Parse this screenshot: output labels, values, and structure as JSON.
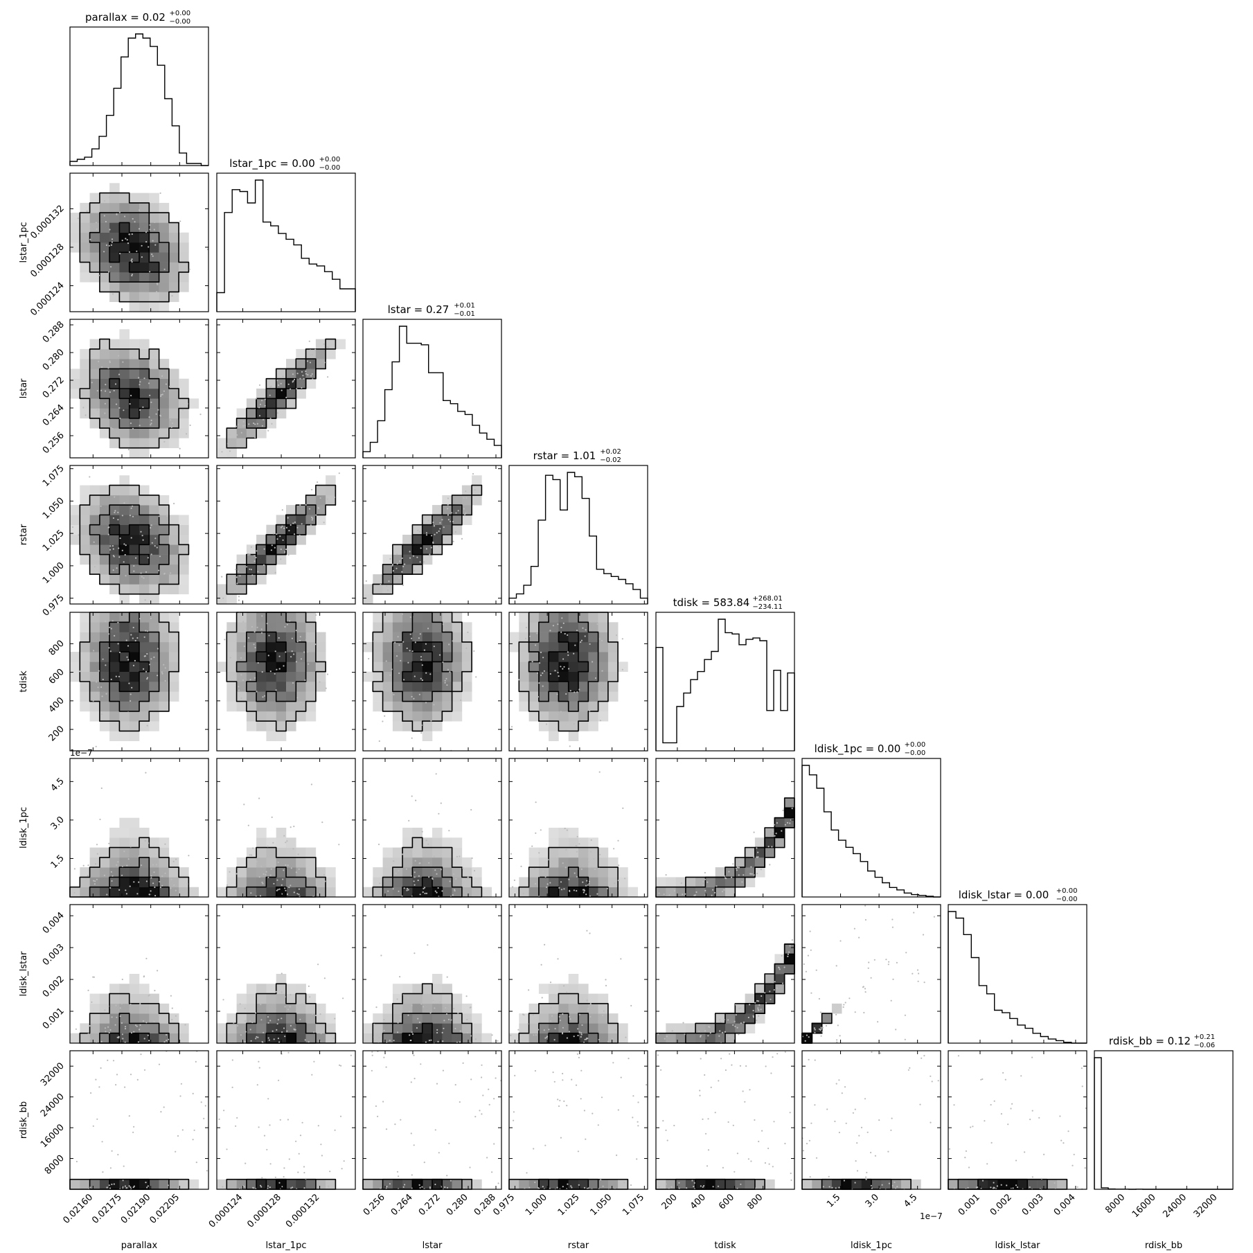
{
  "chart_data": {
    "type": "corner",
    "parameters": [
      "parallax",
      "lstar_1pc",
      "lstar",
      "rstar",
      "tdisk",
      "ldisk_1pc",
      "ldisk_lstar",
      "rdisk_bb"
    ],
    "titles": [
      {
        "name": "parallax",
        "median": "0.02",
        "plus": "+0.00",
        "minus": "−0.00"
      },
      {
        "name": "lstar_1pc",
        "median": "0.00",
        "plus": "+0.00",
        "minus": "−0.00"
      },
      {
        "name": "lstar",
        "median": "0.27",
        "plus": "+0.01",
        "minus": "−0.01"
      },
      {
        "name": "rstar",
        "median": "1.01",
        "plus": "+0.02",
        "minus": "−0.02"
      },
      {
        "name": "tdisk",
        "median": "583.84",
        "plus": "+268.01",
        "minus": "−234.11"
      },
      {
        "name": "ldisk_1pc",
        "median": "0.00",
        "plus": "+0.00",
        "minus": "−0.00"
      },
      {
        "name": "ldisk_lstar",
        "median": "0.00",
        "plus": "+0.00",
        "minus": "−0.00"
      },
      {
        "name": "rdisk_bb",
        "median": "0.12",
        "plus": "+0.21",
        "minus": "−0.06"
      }
    ],
    "axes": [
      {
        "name": "parallax",
        "range": [
          0.02148,
          0.0222
        ],
        "ticks": [
          0.0216,
          0.02175,
          0.0219,
          0.02205
        ],
        "tick_labels": [
          "0.02160",
          "0.02175",
          "0.02190",
          "0.02205"
        ],
        "offset": ""
      },
      {
        "name": "lstar_1pc",
        "range": [
          0.0001213,
          0.0001357
        ],
        "ticks": [
          0.000124,
          0.000128,
          0.000132
        ],
        "tick_labels": [
          "0.000124",
          "0.000128",
          "0.000132"
        ],
        "offset": ""
      },
      {
        "name": "lstar",
        "range": [
          0.2496,
          0.2896
        ],
        "ticks": [
          0.256,
          0.264,
          0.272,
          0.28,
          0.288
        ],
        "tick_labels": [
          "0.256",
          "0.264",
          "0.272",
          "0.280",
          "0.288"
        ],
        "offset": ""
      },
      {
        "name": "rstar",
        "range": [
          0.9705,
          1.0775
        ],
        "ticks": [
          0.975,
          1.0,
          1.025,
          1.05,
          1.075
        ],
        "tick_labels": [
          "0.975",
          "1.000",
          "1.025",
          "1.050",
          "1.075"
        ],
        "offset": ""
      },
      {
        "name": "tdisk",
        "range": [
          50,
          1020
        ],
        "ticks": [
          200,
          400,
          600,
          800
        ],
        "tick_labels": [
          "200",
          "400",
          "600",
          "800"
        ],
        "offset": ""
      },
      {
        "name": "ldisk_1pc",
        "range": [
          0.0,
          5.4
        ],
        "ticks": [
          1.5,
          3.0,
          4.5
        ],
        "tick_labels": [
          "1.5",
          "3.0",
          "4.5"
        ],
        "offset": "1e−7"
      },
      {
        "name": "ldisk_lstar",
        "range": [
          0.0,
          0.00435
        ],
        "ticks": [
          0.001,
          0.002,
          0.003,
          0.004
        ],
        "tick_labels": [
          "0.001",
          "0.002",
          "0.003",
          "0.004"
        ],
        "offset": ""
      },
      {
        "name": "rdisk_bb",
        "range": [
          0,
          36000
        ],
        "ticks": [
          8000,
          16000,
          24000,
          32000
        ],
        "tick_labels": [
          "8000",
          "16000",
          "24000",
          "32000"
        ],
        "offset": ""
      }
    ],
    "histograms": [
      {
        "name": "parallax",
        "counts": [
          2,
          3,
          4,
          8,
          14,
          24,
          37,
          52,
          61,
          63,
          61,
          57,
          48,
          32,
          19,
          6,
          1,
          1,
          0
        ]
      },
      {
        "name": "lstar_1pc",
        "counts": [
          10,
          52,
          64,
          63,
          57,
          69,
          47,
          45,
          41,
          38,
          35,
          28,
          25,
          24,
          21,
          17,
          12,
          12
        ]
      },
      {
        "name": "lstar",
        "counts": [
          4,
          10,
          24,
          44,
          62,
          85,
          74,
          74,
          73,
          55,
          55,
          37,
          35,
          30,
          28,
          21,
          16,
          12,
          8
        ]
      },
      {
        "name": "rstar",
        "counts": [
          4,
          7,
          13,
          26,
          58,
          89,
          86,
          65,
          91,
          88,
          73,
          47,
          24,
          21,
          19,
          17,
          14,
          10,
          4
        ]
      },
      {
        "name": "tdisk",
        "counts": [
          77,
          6,
          6,
          33,
          43,
          53,
          59,
          68,
          74,
          98,
          88,
          87,
          79,
          83,
          84,
          82,
          30,
          60,
          30,
          58
        ]
      },
      {
        "name": "ldisk_1pc",
        "counts": [
          167,
          155,
          138,
          108,
          85,
          72,
          63,
          55,
          45,
          33,
          25,
          18,
          12,
          9,
          5,
          3,
          2,
          1,
          0
        ]
      },
      {
        "name": "ldisk_lstar",
        "counts": [
          160,
          152,
          132,
          104,
          70,
          60,
          40,
          37,
          30,
          22,
          18,
          12,
          8,
          5,
          3,
          1,
          0,
          0
        ]
      },
      {
        "name": "rdisk_bb",
        "counts": [
          920,
          10,
          2,
          1,
          1,
          0,
          1,
          0,
          0,
          0,
          0,
          0,
          0,
          0,
          0,
          0,
          0,
          0,
          0,
          0
        ]
      }
    ]
  }
}
